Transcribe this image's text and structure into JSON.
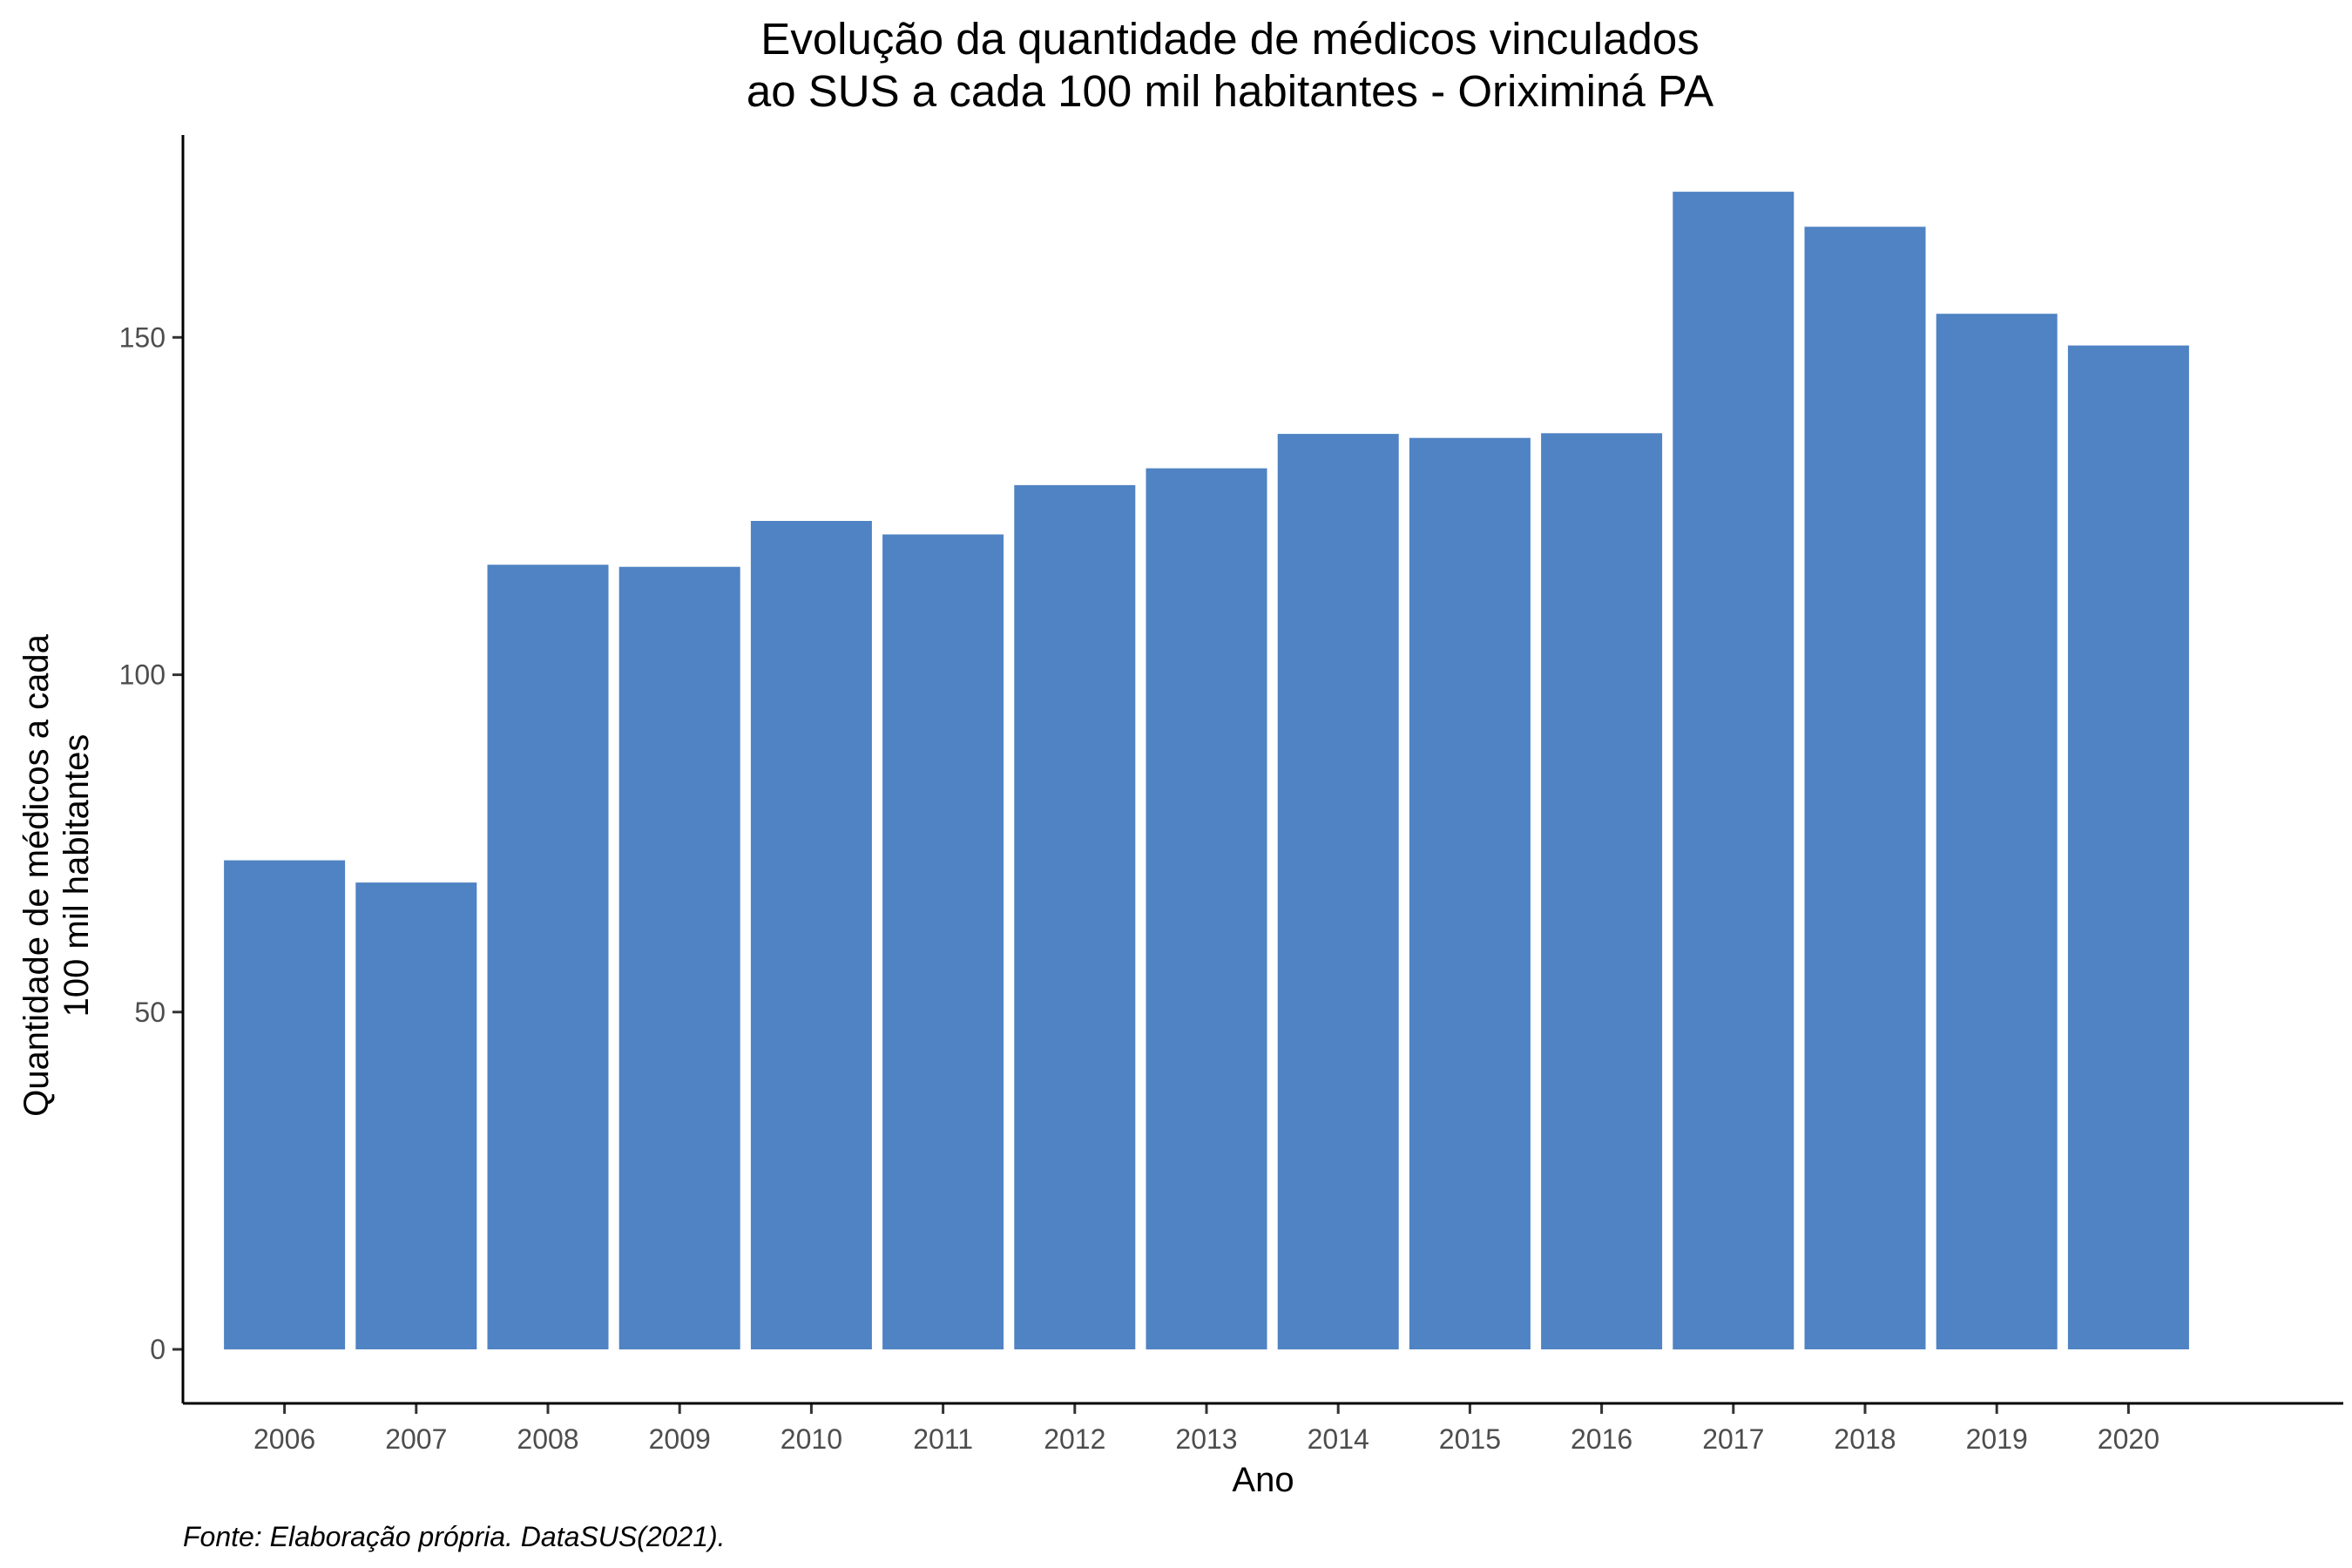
{
  "chart_data": {
    "type": "bar",
    "title": [
      "Evolução da quantidade de médicos vinculados",
      "ao SUS a cada 100 mil habitantes - Oriximiná PA"
    ],
    "xlabel": "Ano",
    "ylabel": [
      "Quantidade de médicos a cada",
      "100 mil habitantes"
    ],
    "caption": "Fonte: Elaboração própria. DataSUS(2021).",
    "categories": [
      "2006",
      "2007",
      "2008",
      "2009",
      "2010",
      "2011",
      "2012",
      "2013",
      "2014",
      "2015",
      "2016",
      "2017",
      "2018",
      "2019",
      "2020"
    ],
    "values": [
      72.5,
      69.2,
      116.3,
      116.0,
      122.8,
      120.8,
      128.1,
      130.6,
      135.7,
      135.1,
      135.8,
      171.6,
      166.4,
      153.5,
      148.8
    ],
    "ylim": [
      -8,
      180
    ],
    "yticks": [
      0,
      50,
      100,
      150
    ],
    "ytick_labels": [
      "0",
      "50",
      "100",
      "150"
    ],
    "bar_color": "#4f83c3",
    "grid": false,
    "legend": "none"
  }
}
